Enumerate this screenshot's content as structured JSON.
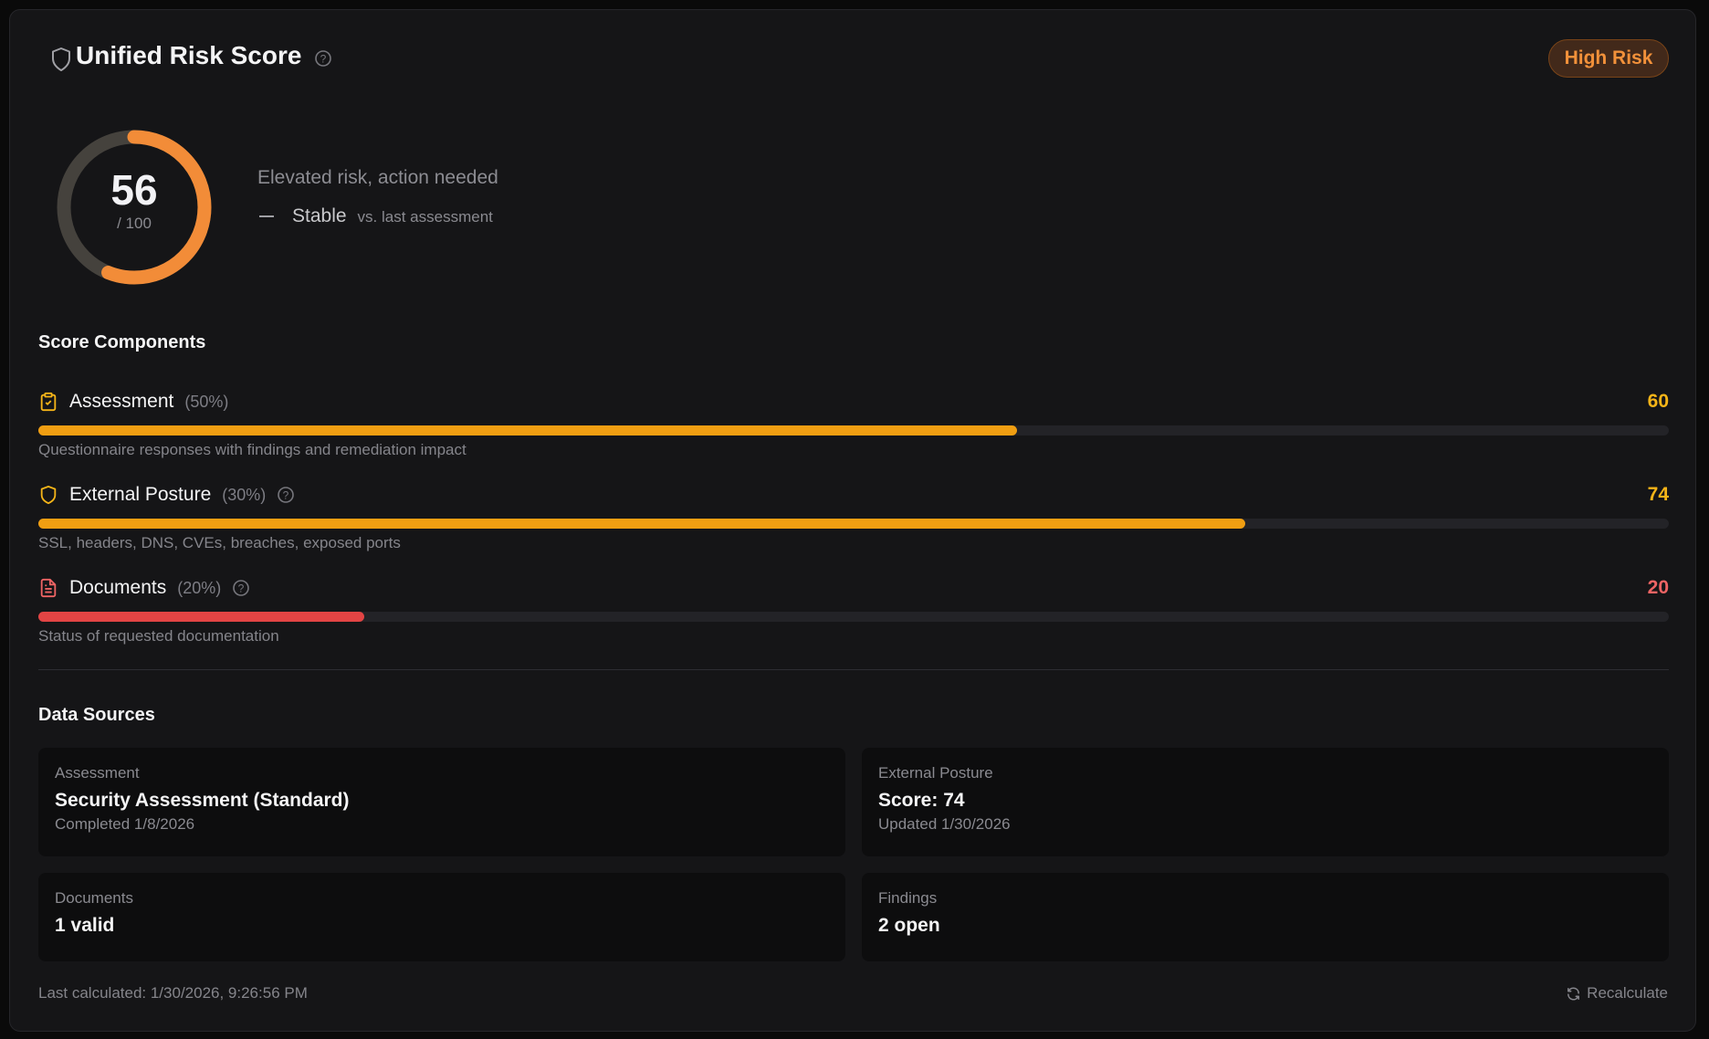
{
  "header": {
    "title": "Unified Risk Score",
    "badge": "High Risk",
    "icon": "shield-icon",
    "help_icon": "help-circle-icon"
  },
  "score": {
    "value": 56,
    "max_label": "/ 100",
    "fraction": 0.56,
    "description": "Elevated risk, action needed",
    "trend": "Stable",
    "trend_context": "vs. last assessment",
    "color": "#f28c38",
    "track_color": "#45423d"
  },
  "components": {
    "title": "Score Components",
    "items": [
      {
        "label": "Assessment",
        "weight": "(50%)",
        "value": "60",
        "percent": 60,
        "description": "Questionnaire responses with findings and remediation impact",
        "color": "#f09e12",
        "value_color": "#f5b418",
        "icon": "clipboard-check-icon",
        "help": false
      },
      {
        "label": "External Posture",
        "weight": "(30%)",
        "value": "74",
        "percent": 74,
        "description": "SSL, headers, DNS, CVEs, breaches, exposed ports",
        "color": "#f09e12",
        "value_color": "#f5b418",
        "icon": "shield-icon",
        "help": true
      },
      {
        "label": "Documents",
        "weight": "(20%)",
        "value": "20",
        "percent": 20,
        "description": "Status of requested documentation",
        "color": "#e24444",
        "value_color": "#ee6464",
        "icon": "file-text-icon",
        "help": true
      }
    ]
  },
  "sources": {
    "title": "Data Sources",
    "items": [
      {
        "label": "Assessment",
        "value": "Security Assessment (Standard)",
        "sub": "Completed 1/8/2026"
      },
      {
        "label": "External Posture",
        "value": "Score: 74",
        "sub": "Updated 1/30/2026"
      },
      {
        "label": "Documents",
        "value": "1 valid"
      },
      {
        "label": "Findings",
        "value": "2 open"
      }
    ]
  },
  "footer": {
    "last_calculated": "Last calculated: 1/30/2026, 9:26:56 PM",
    "recalculate": "Recalculate"
  }
}
